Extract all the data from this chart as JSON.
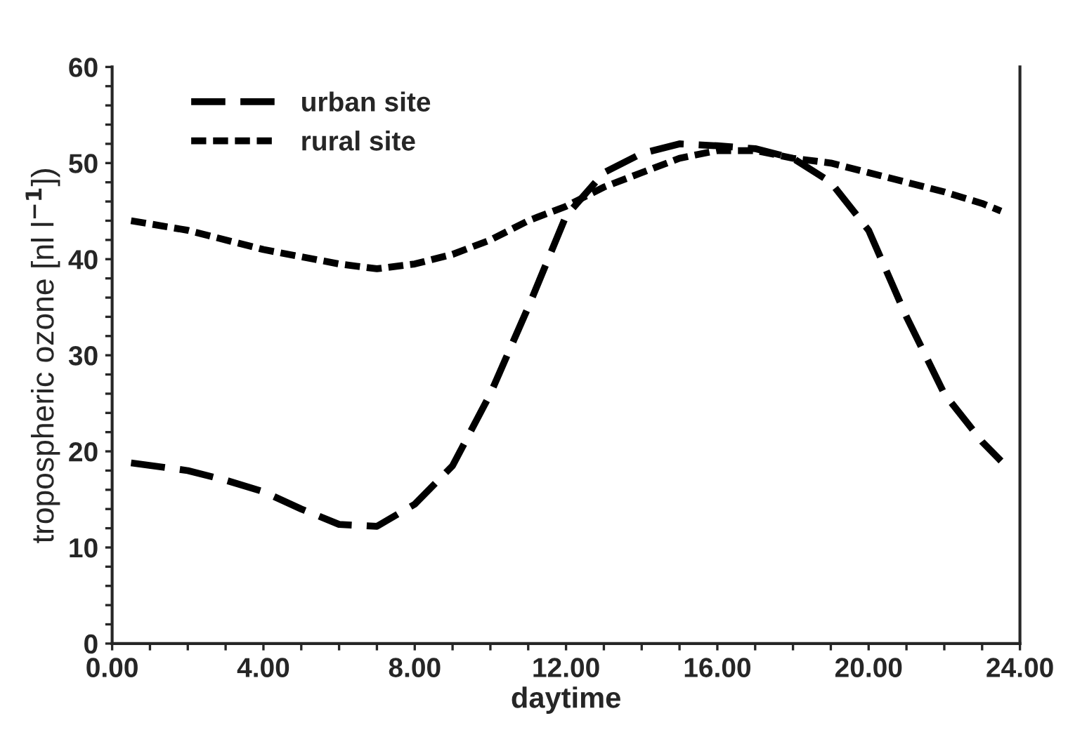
{
  "chart_data": {
    "type": "line",
    "xlabel": "daytime",
    "ylabel": "tropospheric ozone [nl l$^{−1}$])",
    "xlim": [
      0,
      24
    ],
    "ylim": [
      0,
      60
    ],
    "xticks": [
      {
        "value": 0,
        "label": "0.00"
      },
      {
        "value": 1,
        "label": null
      },
      {
        "value": 2,
        "label": null
      },
      {
        "value": 3,
        "label": null
      },
      {
        "value": 4,
        "label": "4.00"
      },
      {
        "value": 5,
        "label": null
      },
      {
        "value": 6,
        "label": null
      },
      {
        "value": 7,
        "label": null
      },
      {
        "value": 8,
        "label": "8.00"
      },
      {
        "value": 9,
        "label": null
      },
      {
        "value": 10,
        "label": null
      },
      {
        "value": 11,
        "label": null
      },
      {
        "value": 12,
        "label": "12.00"
      },
      {
        "value": 13,
        "label": null
      },
      {
        "value": 14,
        "label": null
      },
      {
        "value": 15,
        "label": null
      },
      {
        "value": 16,
        "label": "16.00"
      },
      {
        "value": 17,
        "label": null
      },
      {
        "value": 18,
        "label": null
      },
      {
        "value": 19,
        "label": null
      },
      {
        "value": 20,
        "label": "20.00"
      },
      {
        "value": 21,
        "label": null
      },
      {
        "value": 22,
        "label": null
      },
      {
        "value": 23,
        "label": null
      },
      {
        "value": 24,
        "label": "24.00"
      }
    ],
    "yticks": [
      0,
      {
        "value": 2,
        "label": null
      },
      {
        "value": 4,
        "label": null
      },
      {
        "value": 6,
        "label": null
      },
      {
        "value": 8,
        "label": null
      },
      10,
      {
        "value": 12,
        "label": null
      },
      {
        "value": 14,
        "label": null
      },
      {
        "value": 16,
        "label": null
      },
      {
        "value": 18,
        "label": null
      },
      20,
      {
        "value": 22,
        "label": null
      },
      {
        "value": 24,
        "label": null
      },
      {
        "value": 26,
        "label": null
      },
      {
        "value": 28,
        "label": null
      },
      30,
      {
        "value": 32,
        "label": null
      },
      {
        "value": 34,
        "label": null
      },
      {
        "value": 36,
        "label": null
      },
      {
        "value": 38,
        "label": null
      },
      40,
      {
        "value": 42,
        "label": null
      },
      {
        "value": 44,
        "label": null
      },
      {
        "value": 46,
        "label": null
      },
      {
        "value": 48,
        "label": null
      },
      50,
      {
        "value": 52,
        "label": null
      },
      {
        "value": 54,
        "label": null
      },
      {
        "value": 56,
        "label": null
      },
      {
        "value": 58,
        "label": null
      },
      60
    ],
    "grid": false,
    "legend": "top left",
    "marker": "none",
    "series": [
      {
        "name": "urban site",
        "color": "#000000",
        "line_style": "dashed",
        "x": [
          0.5,
          2,
          3,
          4,
          5,
          6,
          7,
          8,
          9,
          10,
          11,
          12,
          13,
          14,
          15,
          16,
          17,
          18,
          19,
          20,
          21,
          22,
          23,
          23.5
        ],
        "values": [
          18.8,
          18,
          17,
          15.8,
          14,
          12.4,
          12.2,
          14.5,
          18.5,
          26,
          35,
          44.5,
          49,
          51,
          52,
          51.8,
          51.5,
          50.5,
          48,
          43,
          34,
          26,
          21,
          19
        ]
      },
      {
        "name": "rural site",
        "color": "#000000",
        "line_style": "dotted",
        "x": [
          0.5,
          2,
          4,
          6,
          7,
          8,
          9,
          10,
          11,
          12,
          13,
          14,
          15,
          16,
          17,
          18,
          19,
          20,
          21,
          22,
          23,
          23.5
        ],
        "values": [
          44,
          43,
          41,
          39.5,
          39,
          39.5,
          40.5,
          42,
          44,
          45.5,
          47.5,
          49,
          50.5,
          51.3,
          51.3,
          50.5,
          50,
          49,
          48,
          47,
          45.8,
          45
        ]
      }
    ]
  }
}
